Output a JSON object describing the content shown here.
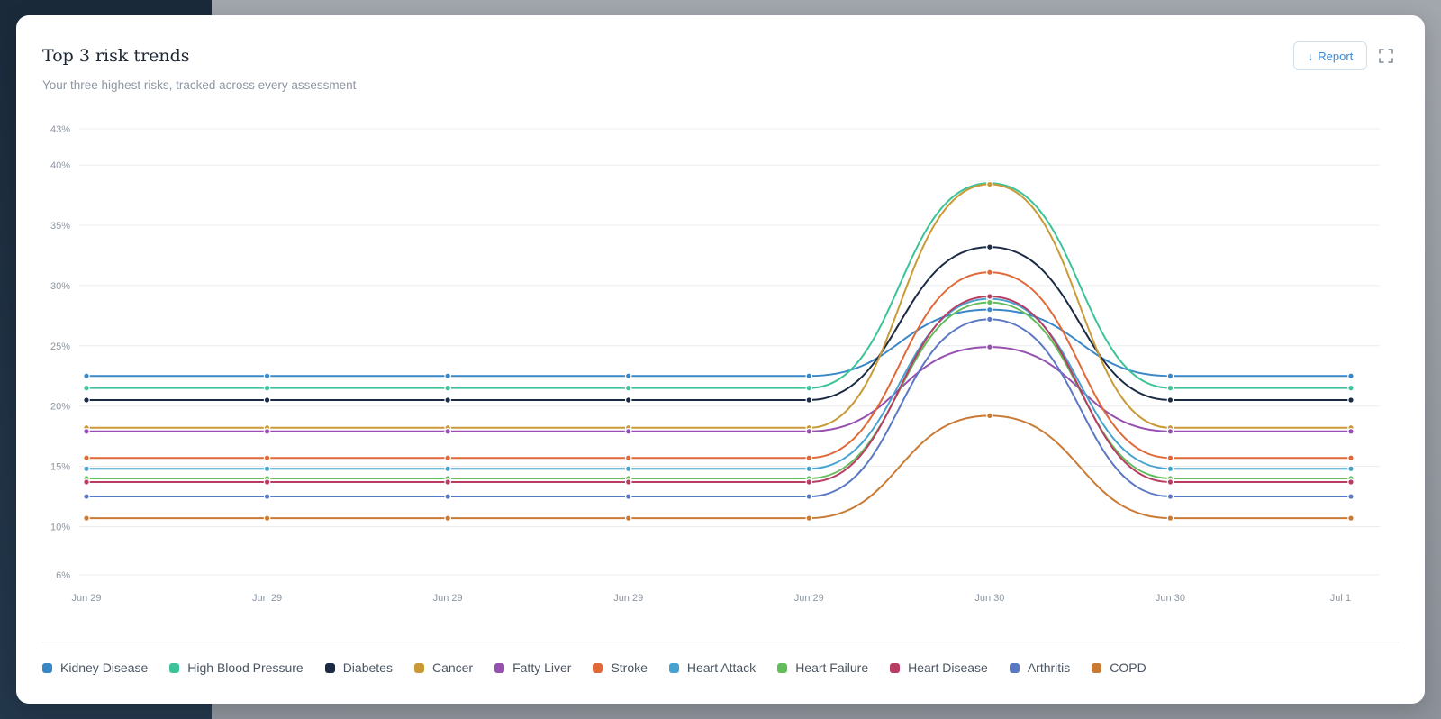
{
  "card": {
    "title": "Top 3 risk trends",
    "subtitle": "Your three highest risks, tracked across every assessment",
    "report_label": "Report",
    "report_icon": "arrow-down-icon",
    "expand_icon": "expand-icon"
  },
  "colors": {
    "grid": "#e9ecef",
    "tick_text": "#8d97a3",
    "accent": "#3a8ad6"
  },
  "chart_data": {
    "type": "line",
    "x": [
      "Jun 29",
      "Jun 29",
      "Jun 29",
      "Jun 29",
      "Jun 29",
      "Jun 30",
      "Jun 30",
      "Jul 1"
    ],
    "ylim": [
      6,
      43
    ],
    "yticks": [
      "6%",
      "10%",
      "15%",
      "20%",
      "25%",
      "30%",
      "35%",
      "40%",
      "43%"
    ],
    "ytick_values": [
      6,
      10,
      15,
      20,
      25,
      30,
      35,
      40,
      43
    ],
    "grid": true,
    "legend_position": "bottom",
    "series": [
      {
        "name": "Kidney Disease",
        "color": "#3a87c8",
        "values": [
          22.5,
          22.5,
          22.5,
          22.5,
          22.5,
          28,
          22.5,
          22.5
        ]
      },
      {
        "name": "High Blood Pressure",
        "color": "#3cc39a",
        "values": [
          21.5,
          21.5,
          21.5,
          21.5,
          21.5,
          38.5,
          21.5,
          21.5
        ]
      },
      {
        "name": "Diabetes",
        "color": "#1c2b45",
        "values": [
          20.5,
          20.5,
          20.5,
          20.5,
          20.5,
          33.2,
          20.5,
          20.5
        ]
      },
      {
        "name": "Cancer",
        "color": "#c99a36",
        "values": [
          18.2,
          18.2,
          18.2,
          18.2,
          18.2,
          38.4,
          18.2,
          18.2
        ]
      },
      {
        "name": "Fatty Liver",
        "color": "#9550b0",
        "values": [
          17.9,
          17.9,
          17.9,
          17.9,
          17.9,
          24.9,
          17.9,
          17.9
        ]
      },
      {
        "name": "Stroke",
        "color": "#e0693a",
        "values": [
          15.7,
          15.7,
          15.7,
          15.7,
          15.7,
          31.1,
          15.7,
          15.7
        ]
      },
      {
        "name": "Heart Attack",
        "color": "#46a3cf",
        "values": [
          14.8,
          14.8,
          14.8,
          14.8,
          14.8,
          28.9,
          14.8,
          14.8
        ]
      },
      {
        "name": "Heart Failure",
        "color": "#62bd5a",
        "values": [
          14.0,
          14.0,
          14.0,
          14.0,
          14.0,
          28.6,
          14.0,
          14.0
        ]
      },
      {
        "name": "Heart Disease",
        "color": "#b93d63",
        "values": [
          13.7,
          13.7,
          13.7,
          13.7,
          13.7,
          29.1,
          13.7,
          13.7
        ]
      },
      {
        "name": "Arthritis",
        "color": "#5b78c2",
        "values": [
          12.5,
          12.5,
          12.5,
          12.5,
          12.5,
          27.2,
          12.5,
          12.5
        ]
      },
      {
        "name": "COPD",
        "color": "#c97b35",
        "values": [
          10.7,
          10.7,
          10.7,
          10.7,
          10.7,
          19.2,
          10.7,
          10.7
        ]
      }
    ]
  }
}
